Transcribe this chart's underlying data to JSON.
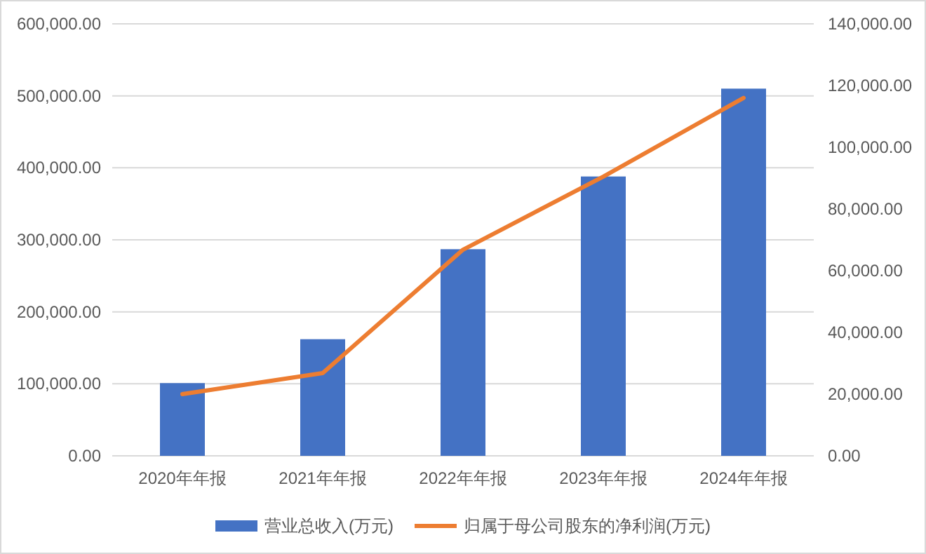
{
  "chart_data": {
    "type": "bar",
    "categories": [
      "2020年年报",
      "2021年年报",
      "2022年年报",
      "2023年年报",
      "2024年年报"
    ],
    "series": [
      {
        "name": "营业总收入(万元)",
        "color": "#4472c4",
        "values": [
          101000,
          162000,
          287000,
          388000,
          510000
        ]
      },
      {
        "name": "归属于母公司股东的净利润(万元)",
        "type": "line",
        "axis": "y2",
        "color": "#ed7d31",
        "marker": "none",
        "values": [
          20000,
          26800,
          66800,
          90500,
          116000
        ]
      }
    ],
    "ylim": [
      0,
      600000
    ],
    "yticks": [
      {
        "value": 0,
        "label": "0.00"
      },
      {
        "value": 100000,
        "label": "100,000.00"
      },
      {
        "value": 200000,
        "label": "200,000.00"
      },
      {
        "value": 300000,
        "label": "300,000.00"
      },
      {
        "value": 400000,
        "label": "400,000.00"
      },
      {
        "value": 500000,
        "label": "500,000.00"
      },
      {
        "value": 600000,
        "label": "600,000.00"
      }
    ],
    "y2lim": [
      0,
      140000
    ],
    "y2ticks": [
      {
        "value": 0,
        "label": "0.00"
      },
      {
        "value": 20000,
        "label": "20,000.00"
      },
      {
        "value": 40000,
        "label": "40,000.00"
      },
      {
        "value": 60000,
        "label": "60,000.00"
      },
      {
        "value": 80000,
        "label": "80,000.00"
      },
      {
        "value": 100000,
        "label": "100,000.00"
      },
      {
        "value": 120000,
        "label": "120,000.00"
      },
      {
        "value": 140000,
        "label": "140,000.00"
      }
    ],
    "grid": "y",
    "legend": "bottom"
  }
}
